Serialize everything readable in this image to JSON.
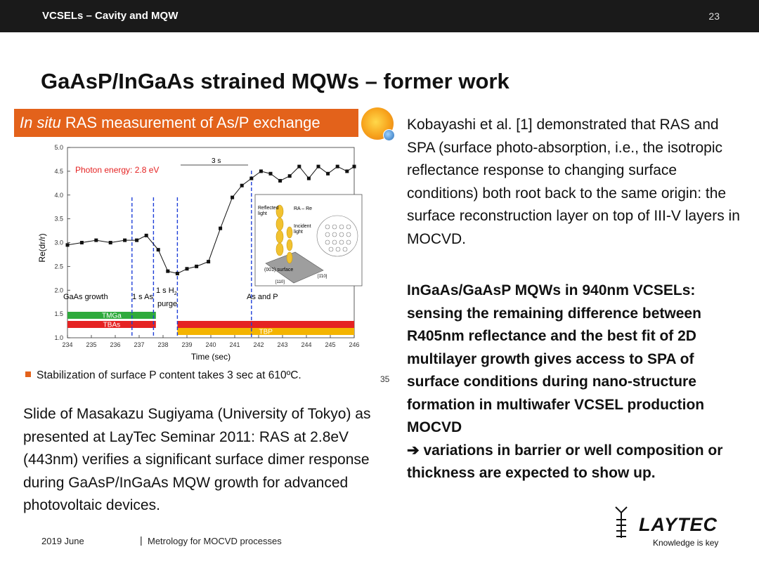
{
  "header": {
    "section_title": "VCSELs – Cavity and MQW",
    "page_number": "23"
  },
  "slide_title": "GaAsP/InGaAs strained MQWs – former work",
  "embedded_slide": {
    "banner_italic": "In situ",
    "banner_rest": " RAS measurement of As/P exchange",
    "note": "Stabilization of surface P content takes 3 sec at 610ºC.",
    "slide_number": "35",
    "chart_labels": {
      "photon_energy": "Photon energy: 2.8 eV",
      "three_s": "3 s",
      "gaas_growth": "GaAs growth",
      "one_s_as": "1 s As",
      "one_s_h2": "1 s H",
      "h2_sub": "2",
      "purge": "purge",
      "as_and_p": "As and P",
      "tmga": "TMGa",
      "tbas": "TBAs",
      "tbp": "TBP",
      "inset_reflected": "Reflected",
      "inset_light": "light",
      "inset_ra": "RA – Re",
      "inset_incident": "Incident",
      "inset_incident_light": "light",
      "inset_surface": "(001) surface",
      "inset_110": "[110]",
      "inset_1bar10": "[1̄10]"
    }
  },
  "right_text": {
    "para1": "Kobayashi et al. [1] demonstrated that RAS and SPA (surface photo-absorption, i.e., the isotropic reflectance response to changing surface conditions) both root back to the same origin: the surface reconstruction layer on top of III-V layers in MOCVD.",
    "para2": "InGaAs/GaAsP MQWs in 940nm VCSELs: sensing the remaining difference between R405nm reflectance and the best fit of 2D multilayer growth gives access to SPA of surface conditions during nano-structure formation in multiwafer VCSEL production MOCVD",
    "arrow": "➔",
    "para2b": " variations in barrier or well composition or thickness are expected to show up."
  },
  "caption": "Slide of Masakazu Sugiyama (University of Tokyo) as presented at LayTec Seminar 2011: RAS at 2.8eV (443nm) verifies a significant surface dimer response during GaAsP/InGaAs MQW growth for advanced photovoltaic devices.",
  "footer": {
    "date": "2019 June",
    "separator": "|",
    "title": "Metrology for MOCVD processes"
  },
  "logo": {
    "wordmark": "LAYTEC",
    "tagline": "Knowledge is key"
  },
  "chart_data": {
    "type": "line",
    "xlabel": "Time (sec)",
    "ylabel": "Re(dr/r)",
    "xlim": [
      234,
      246
    ],
    "ylim": [
      1.0,
      5.0
    ],
    "x_ticks": [
      234,
      235,
      236,
      237,
      238,
      239,
      240,
      241,
      242,
      243,
      244,
      245,
      246
    ],
    "y_ticks": [
      1.0,
      1.5,
      2.0,
      2.5,
      3.0,
      3.5,
      4.0,
      4.5,
      5.0
    ],
    "series": [
      {
        "x": [
          234.0,
          234.6,
          235.2,
          235.8,
          236.4,
          236.9,
          237.3,
          237.8,
          238.2,
          238.6,
          239.0,
          239.4,
          239.9,
          240.4,
          240.9,
          241.3,
          241.7,
          242.1,
          242.5,
          242.9,
          243.3,
          243.7,
          244.1,
          244.5,
          244.9,
          245.3,
          245.7,
          246.0
        ],
        "y": [
          2.95,
          3.0,
          3.05,
          3.0,
          3.05,
          3.05,
          3.15,
          2.85,
          2.4,
          2.35,
          2.45,
          2.5,
          2.6,
          3.3,
          3.95,
          4.2,
          4.35,
          4.5,
          4.45,
          4.3,
          4.4,
          4.6,
          4.35,
          4.6,
          4.45,
          4.6,
          4.5,
          4.6
        ]
      }
    ],
    "markers": [
      {
        "x": 236.7,
        "color": "#1f3fd8"
      },
      {
        "x": 237.6,
        "color": "#1f3fd8"
      },
      {
        "x": 238.6,
        "color": "#1f3fd8"
      },
      {
        "x": 241.7,
        "color": "#1f3fd8"
      }
    ],
    "bars": [
      {
        "label": "TMGa",
        "x0": 234.0,
        "x1": 237.7,
        "color": "#2eaa3c"
      },
      {
        "label": "TBAs",
        "x0": 234.0,
        "x1": 237.7,
        "color": "#e52222"
      },
      {
        "label": "TBAs",
        "x0": 238.6,
        "x1": 246.0,
        "color": "#e52222"
      },
      {
        "label": "TBP",
        "x0": 238.6,
        "x1": 246.0,
        "color": "#f4b400"
      }
    ]
  }
}
